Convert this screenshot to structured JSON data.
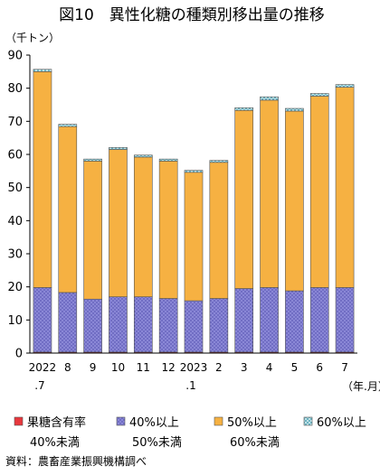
{
  "chart_data": {
    "type": "bar",
    "stacked": true,
    "title": "図10　異性化糖の種類別移出量の推移",
    "ylabel": "（千トン）",
    "xlabel": "（年.月）",
    "ylim": [
      0,
      90
    ],
    "yticks": [
      0,
      10,
      20,
      30,
      40,
      50,
      60,
      70,
      80,
      90
    ],
    "grid": false,
    "legend_position": "bottom",
    "categories": [
      {
        "line1": "2022",
        "line2": ".7"
      },
      {
        "line1": "8",
        "line2": ""
      },
      {
        "line1": "9",
        "line2": ""
      },
      {
        "line1": "10",
        "line2": ""
      },
      {
        "line1": "11",
        "line2": ""
      },
      {
        "line1": "12",
        "line2": ""
      },
      {
        "line1": "2023",
        "line2": ".1"
      },
      {
        "line1": "2",
        "line2": ""
      },
      {
        "line1": "3",
        "line2": ""
      },
      {
        "line1": "4",
        "line2": ""
      },
      {
        "line1": "5",
        "line2": ""
      },
      {
        "line1": "6",
        "line2": ""
      },
      {
        "line1": "7",
        "line2": ""
      }
    ],
    "series": [
      {
        "name_line1": "果糖含有率",
        "name_line2": "40%未満",
        "color": "#e8383d",
        "pattern": "solid",
        "values": [
          0.3,
          0.3,
          0.3,
          0.3,
          0.3,
          0.3,
          0.3,
          0.3,
          0.3,
          0.3,
          0.3,
          0.3,
          0.3
        ]
      },
      {
        "name_line1": "40%以上",
        "name_line2": "50%未満",
        "color": "#8a87d6",
        "pattern": "dots",
        "values": [
          19.5,
          18.0,
          16.0,
          16.7,
          16.7,
          16.2,
          15.5,
          16.2,
          19.2,
          19.5,
          18.5,
          19.5,
          19.5
        ]
      },
      {
        "name_line1": "50%以上",
        "name_line2": "60%未満",
        "color": "#f6b142",
        "pattern": "solid",
        "values": [
          65.2,
          50.1,
          41.7,
          44.5,
          42.2,
          41.5,
          38.8,
          41.1,
          53.8,
          56.6,
          54.3,
          57.8,
          60.5
        ]
      },
      {
        "name_line1": "60%以上",
        "name_line2": "",
        "color": "#a8d8df",
        "pattern": "cross",
        "values": [
          0.7,
          0.7,
          0.6,
          0.6,
          0.6,
          0.6,
          0.6,
          0.6,
          0.8,
          1.0,
          0.8,
          0.8,
          0.8
        ]
      }
    ]
  },
  "source_note": "資料：農畜産業振興機構調べ"
}
